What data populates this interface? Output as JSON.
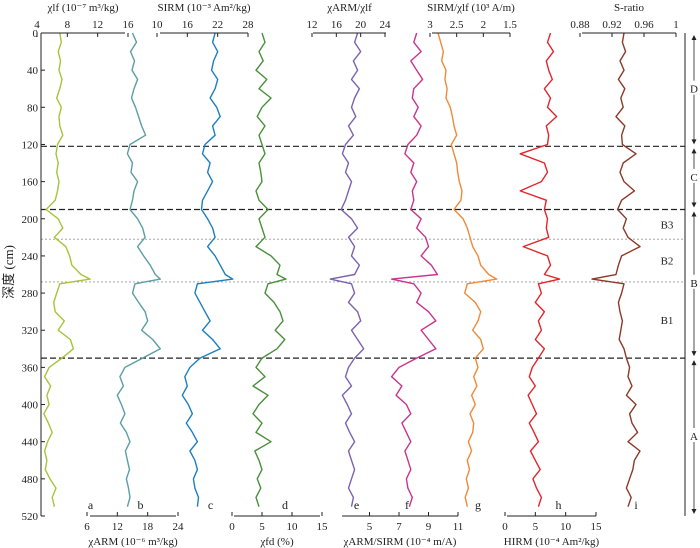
{
  "chart_data": {
    "type": "line",
    "y_axis": {
      "label": "深度 (cm)",
      "range": [
        0,
        520
      ],
      "ticks": [
        0,
        40,
        80,
        120,
        160,
        200,
        240,
        280,
        320,
        360,
        400,
        440,
        480,
        520
      ],
      "inverted": true
    },
    "boundaries": [
      {
        "depth": 122,
        "style": "dashed"
      },
      {
        "depth": 190,
        "style": "dashed"
      },
      {
        "depth": 222,
        "style": "dotted"
      },
      {
        "depth": 268,
        "style": "dotted"
      },
      {
        "depth": 350,
        "style": "dashed"
      }
    ],
    "zones": [
      {
        "label": "D",
        "top": 0,
        "bottom": 122,
        "level": 1
      },
      {
        "label": "C",
        "top": 122,
        "bottom": 190,
        "level": 1
      },
      {
        "label": "B",
        "top": 190,
        "bottom": 350,
        "level": 1
      },
      {
        "label": "A",
        "top": 350,
        "bottom": 520,
        "level": 1
      },
      {
        "label": "B3",
        "top": 190,
        "bottom": 222,
        "level": 2
      },
      {
        "label": "B2",
        "top": 222,
        "bottom": 268,
        "level": 2
      },
      {
        "label": "B1",
        "top": 268,
        "bottom": 350,
        "level": 2
      }
    ],
    "depths": [
      0,
      10,
      20,
      30,
      40,
      50,
      60,
      70,
      80,
      90,
      100,
      110,
      120,
      130,
      140,
      150,
      160,
      170,
      180,
      190,
      200,
      210,
      220,
      230,
      240,
      250,
      260,
      265,
      270,
      280,
      290,
      300,
      310,
      320,
      330,
      340,
      350,
      360,
      370,
      380,
      390,
      400,
      410,
      420,
      430,
      440,
      450,
      460,
      470,
      480,
      490,
      500,
      510
    ],
    "series": [
      {
        "letter": "a",
        "name": "χlf",
        "color": "#a6c43a",
        "axis_label": "χlf (10⁻⁷ m³/kg)",
        "axis_pos": "top",
        "range": [
          4,
          16
        ],
        "ticks": [
          4,
          8,
          12,
          16
        ],
        "values": [
          7.0,
          7.2,
          6.8,
          7.1,
          6.9,
          7.3,
          7.0,
          6.6,
          7.2,
          6.9,
          7.0,
          7.4,
          6.7,
          6.5,
          6.8,
          6.6,
          6.9,
          6.7,
          6.4,
          5.2,
          6.8,
          7.4,
          6.3,
          7.8,
          8.3,
          8.6,
          9.8,
          11.0,
          7.0,
          6.6,
          6.2,
          6.4,
          7.6,
          6.8,
          8.4,
          8.8,
          7.3,
          5.6,
          5.0,
          5.8,
          5.3,
          5.6,
          4.9,
          5.5,
          6.0,
          5.4,
          5.0,
          5.3,
          5.1,
          5.7,
          6.5,
          6.0,
          6.3
        ]
      },
      {
        "letter": "b",
        "name": "χARM",
        "color": "#5b9ea5",
        "axis_label": "χARM (10⁻⁶ m³/kg)",
        "axis_pos": "bottom",
        "range": [
          6,
          24
        ],
        "ticks": [
          6,
          12,
          18,
          24
        ],
        "values": [
          15.0,
          15.8,
          14.6,
          15.4,
          14.9,
          16.0,
          15.3,
          14.8,
          15.6,
          16.2,
          16.8,
          17.6,
          14.5,
          14.0,
          15.0,
          14.7,
          16.0,
          15.3,
          15.0,
          14.5,
          16.0,
          17.0,
          17.5,
          16.0,
          17.2,
          18.5,
          19.5,
          20.5,
          15.5,
          15.0,
          16.2,
          17.5,
          18.0,
          16.8,
          19.0,
          20.5,
          17.0,
          13.5,
          12.5,
          13.2,
          12.0,
          12.8,
          13.5,
          12.6,
          13.8,
          14.5,
          13.6,
          14.0,
          14.4,
          13.8,
          14.2,
          14.5,
          14.0
        ]
      },
      {
        "letter": "c",
        "name": "SIRM",
        "color": "#1d7fc0",
        "axis_label": "SIRM (10⁻³ Am²/kg)",
        "axis_pos": "top",
        "range": [
          10,
          28
        ],
        "ticks": [
          10,
          16,
          22,
          28
        ],
        "values": [
          21.5,
          21.0,
          22.0,
          21.2,
          20.8,
          22.0,
          21.5,
          20.5,
          21.8,
          22.5,
          21.0,
          21.5,
          19.5,
          19.0,
          20.5,
          20.0,
          21.0,
          20.0,
          19.0,
          18.8,
          20.0,
          21.0,
          21.5,
          20.0,
          21.5,
          22.5,
          23.5,
          25.0,
          18.0,
          17.5,
          18.5,
          19.5,
          20.5,
          19.0,
          21.0,
          22.5,
          18.5,
          16.5,
          15.5,
          16.0,
          15.0,
          16.2,
          17.0,
          15.8,
          17.0,
          18.0,
          16.5,
          17.5,
          18.0,
          17.2,
          17.5,
          18.2,
          18.0
        ]
      },
      {
        "letter": "d",
        "name": "χfd",
        "color": "#4a8f3c",
        "axis_label": "χfd (%)",
        "axis_pos": "bottom",
        "range": [
          0,
          15
        ],
        "ticks": [
          0,
          5,
          10,
          15
        ],
        "values": [
          5.0,
          5.5,
          4.5,
          5.2,
          4.0,
          5.8,
          4.5,
          6.5,
          5.0,
          4.2,
          5.5,
          4.5,
          5.0,
          5.5,
          4.5,
          4.8,
          5.0,
          4.0,
          4.5,
          6.0,
          4.5,
          5.0,
          5.5,
          4.0,
          6.5,
          8.0,
          7.5,
          9.0,
          6.0,
          5.5,
          7.0,
          8.0,
          8.5,
          7.2,
          8.8,
          7.5,
          5.0,
          4.0,
          5.5,
          3.5,
          6.0,
          4.5,
          3.5,
          5.0,
          4.0,
          6.5,
          3.8,
          4.5,
          5.0,
          4.2,
          4.8,
          4.0,
          4.5
        ]
      },
      {
        "letter": "e",
        "name": "χARM/χlf",
        "color": "#7d62b0",
        "axis_label": "χARM/χlf",
        "axis_pos": "top",
        "range": [
          12,
          24
        ],
        "ticks": [
          12,
          16,
          20,
          24
        ],
        "values": [
          19.5,
          19.0,
          20.0,
          18.8,
          19.5,
          18.5,
          19.8,
          19.0,
          18.5,
          19.2,
          18.0,
          18.8,
          17.5,
          17.0,
          18.0,
          17.5,
          18.5,
          18.0,
          17.5,
          16.8,
          18.5,
          19.5,
          18.0,
          19.0,
          18.5,
          19.8,
          19.0,
          15.0,
          18.5,
          19.0,
          18.0,
          19.5,
          20.0,
          18.5,
          19.5,
          20.5,
          19.0,
          18.0,
          17.5,
          18.5,
          17.0,
          17.8,
          18.5,
          17.5,
          18.2,
          19.0,
          18.0,
          18.5,
          19.0,
          18.5,
          18.0,
          18.8,
          18.5
        ]
      },
      {
        "letter": "f",
        "name": "χARM/SIRM",
        "color": "#c9348e",
        "axis_label": "χARM/SIRM (10⁻⁴ m/A)",
        "axis_pos": "bottom",
        "range": [
          3,
          11
        ],
        "ticks": [
          5,
          7,
          9,
          11
        ],
        "values": [
          8.2,
          8.0,
          8.5,
          7.8,
          8.2,
          8.6,
          8.0,
          7.9,
          8.3,
          8.0,
          8.5,
          8.2,
          7.6,
          7.4,
          8.0,
          7.8,
          8.2,
          7.9,
          8.0,
          7.8,
          8.5,
          8.2,
          8.8,
          9.0,
          8.5,
          9.2,
          9.6,
          6.5,
          8.0,
          8.5,
          8.2,
          9.0,
          9.5,
          8.5,
          9.0,
          9.5,
          8.2,
          7.0,
          6.5,
          7.2,
          6.8,
          7.5,
          7.8,
          7.2,
          7.5,
          7.8,
          7.4,
          7.6,
          7.8,
          7.5,
          7.6,
          7.9,
          7.7
        ]
      },
      {
        "letter": "g",
        "name": "SIRM/χlf",
        "color": "#ef8a38",
        "axis_label": "SIRM/χlf (10³ A/m)",
        "axis_pos": "top",
        "range": [
          3.0,
          1.5
        ],
        "ticks": [
          3.0,
          2.5,
          2.0,
          1.5
        ],
        "values": [
          2.85,
          2.8,
          2.75,
          2.78,
          2.7,
          2.72,
          2.68,
          2.7,
          2.62,
          2.58,
          2.55,
          2.5,
          2.6,
          2.55,
          2.5,
          2.48,
          2.45,
          2.4,
          2.42,
          2.55,
          2.38,
          2.3,
          2.25,
          2.2,
          2.1,
          2.05,
          1.9,
          1.75,
          2.3,
          2.35,
          2.15,
          2.05,
          2.1,
          2.2,
          2.05,
          2.0,
          2.15,
          2.1,
          2.18,
          2.12,
          2.22,
          2.15,
          2.25,
          2.18,
          2.2,
          2.28,
          2.22,
          2.3,
          2.26,
          2.32,
          2.28,
          2.34,
          2.3
        ]
      },
      {
        "letter": "h",
        "name": "HIRM",
        "color": "#e1262d",
        "axis_label": "HIRM (10⁻⁴ Am²/kg)",
        "axis_pos": "bottom",
        "range": [
          0,
          15
        ],
        "ticks": [
          0,
          5,
          10,
          15
        ],
        "values": [
          7.5,
          7.0,
          8.0,
          6.8,
          7.2,
          7.8,
          6.5,
          7.5,
          7.0,
          8.5,
          6.8,
          7.2,
          7.0,
          2.5,
          6.5,
          7.0,
          6.0,
          2.5,
          6.8,
          6.5,
          7.0,
          6.8,
          7.2,
          3.0,
          7.0,
          7.5,
          6.5,
          9.0,
          5.5,
          6.0,
          5.0,
          6.5,
          5.5,
          6.0,
          5.0,
          6.5,
          5.5,
          4.5,
          4.0,
          5.0,
          3.8,
          4.5,
          5.2,
          4.0,
          4.8,
          5.5,
          4.2,
          5.0,
          5.8,
          4.6,
          5.2,
          6.0,
          5.5
        ]
      },
      {
        "letter": "i",
        "name": "S-ratio",
        "color": "#8b3a28",
        "axis_label": "S-ratio",
        "axis_pos": "top",
        "range": [
          0.88,
          1.0
        ],
        "ticks": [
          0.88,
          0.92,
          0.96,
          1.0
        ],
        "values": [
          0.935,
          0.933,
          0.937,
          0.93,
          0.935,
          0.928,
          0.936,
          0.931,
          0.934,
          0.925,
          0.936,
          0.932,
          0.933,
          0.95,
          0.934,
          0.93,
          0.935,
          0.948,
          0.932,
          0.927,
          0.938,
          0.934,
          0.94,
          0.955,
          0.932,
          0.928,
          0.925,
          0.895,
          0.935,
          0.932,
          0.928,
          0.93,
          0.933,
          0.931,
          0.929,
          0.935,
          0.938,
          0.942,
          0.94,
          0.945,
          0.938,
          0.95,
          0.942,
          0.945,
          0.952,
          0.94,
          0.955,
          0.948,
          0.946,
          0.942,
          0.938,
          0.944,
          0.94
        ]
      }
    ]
  }
}
